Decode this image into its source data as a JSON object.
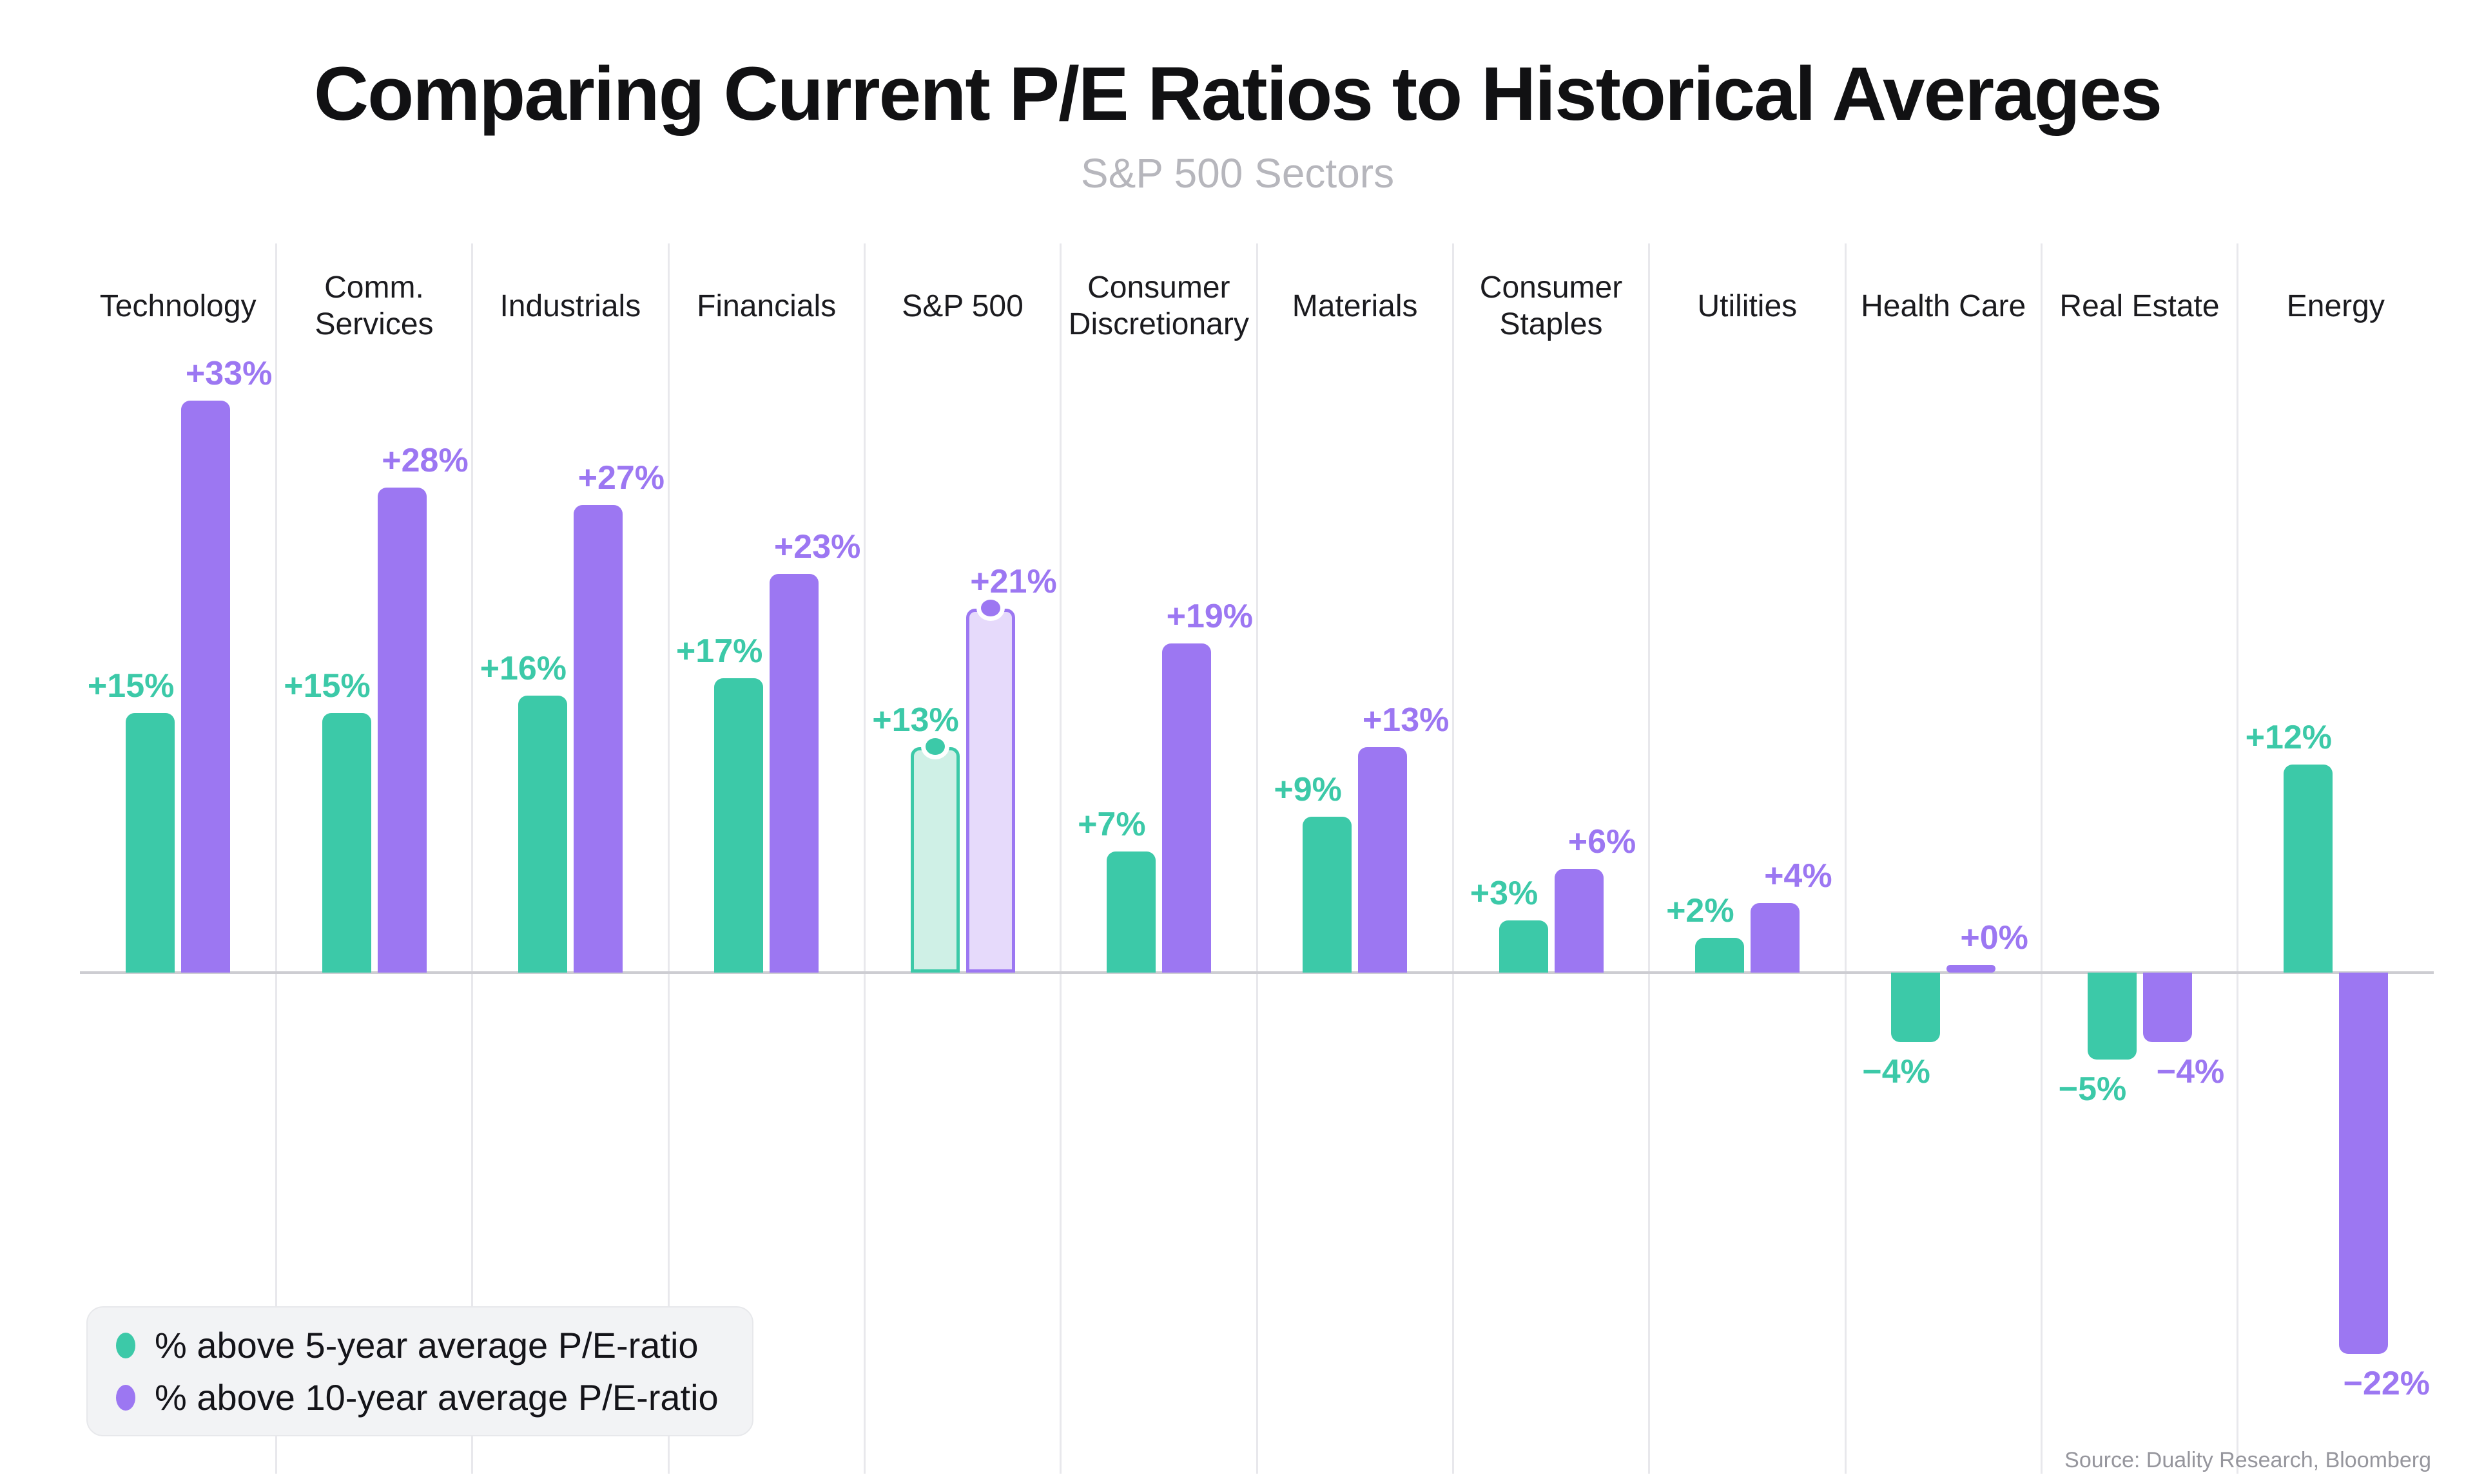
{
  "title": "Comparing Current P/E Ratios to Historical Averages",
  "subtitle": "S&P 500 Sectors",
  "source": "Source: Duality Research, Bloomberg",
  "legend": {
    "items": [
      {
        "label": "% above 5-year average P/E-ratio",
        "color": "#3CC9A8"
      },
      {
        "label": "% above 10-year average P/E-ratio",
        "color": "#9C77F2"
      }
    ]
  },
  "colors": {
    "teal": "#3CC9A8",
    "purple": "#9C77F2",
    "teal_light": "#CFF0E6",
    "purple_light": "#E6DAFB",
    "grid": "#E8E8EC",
    "axis": "#CDCDD2",
    "title": "#111113",
    "subtitle": "#B6B6BC",
    "source": "#96969D"
  },
  "chart_data": {
    "type": "bar",
    "categories": [
      "Technology",
      "Comm.\nServices",
      "Industrials",
      "Financials",
      "S&P 500",
      "Consumer\nDiscretionary",
      "Materials",
      "Consumer\nStaples",
      "Utilities",
      "Health Care",
      "Real Estate",
      "Energy"
    ],
    "series": [
      {
        "name": "% above 5-year average P/E-ratio",
        "values": [
          15,
          15,
          16,
          17,
          13,
          7,
          9,
          3,
          2,
          -4,
          -5,
          12
        ]
      },
      {
        "name": "% above 10-year average P/E-ratio",
        "values": [
          33,
          28,
          27,
          23,
          21,
          19,
          13,
          6,
          4,
          0,
          -4,
          -22
        ]
      }
    ],
    "value_labels": [
      [
        "+15%",
        "+33%"
      ],
      [
        "+15%",
        "+28%"
      ],
      [
        "+16%",
        "+27%"
      ],
      [
        "+17%",
        "+23%"
      ],
      [
        "+13%",
        "+21%"
      ],
      [
        "+7%",
        "+19%"
      ],
      [
        "+9%",
        "+13%"
      ],
      [
        "+3%",
        "+6%"
      ],
      [
        "+2%",
        "+4%"
      ],
      [
        "−4%",
        "+0%"
      ],
      [
        "−5%",
        "−4%"
      ],
      [
        "+12%",
        "−22%"
      ]
    ],
    "highlight_category": "S&P 500",
    "title": "Comparing Current P/E Ratios to Historical Averages",
    "xlabel": "",
    "ylabel": "",
    "ylim": [
      -25,
      36
    ],
    "grid": "vertical-column-separators",
    "legend_position": "bottom-left"
  }
}
